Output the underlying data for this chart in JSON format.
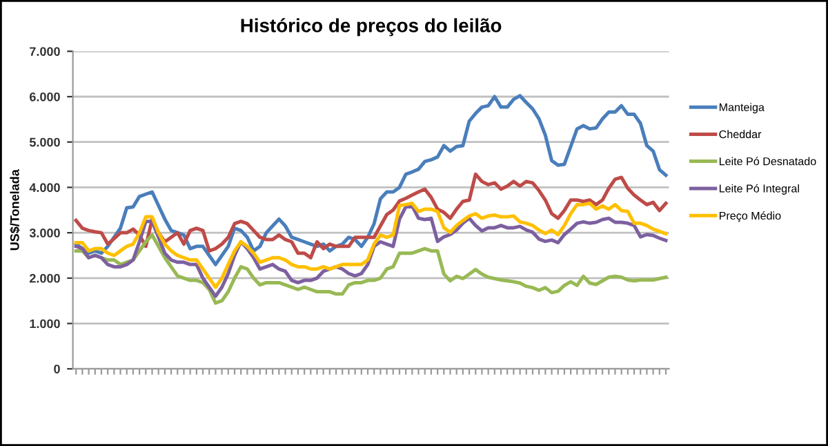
{
  "chart_data": {
    "type": "line",
    "title": "Histórico de preços do leilão",
    "ylabel": "US$/Tonelada",
    "categories": [
      null,
      null,
      null,
      null,
      null,
      null,
      null,
      null,
      null,
      null,
      null,
      null,
      null,
      null,
      null,
      null,
      null,
      null,
      null,
      null,
      null,
      null,
      null,
      null,
      null,
      null,
      null,
      null,
      null,
      null,
      null,
      null,
      null,
      null,
      null,
      null,
      null,
      null,
      null,
      null,
      null,
      null,
      null,
      null,
      null,
      null,
      null,
      null,
      null,
      null,
      null,
      null,
      null,
      null,
      null,
      null,
      null,
      null,
      null,
      null,
      null,
      null,
      null,
      null,
      null,
      null,
      null,
      null,
      null,
      null,
      null,
      null,
      null,
      null,
      null,
      null,
      null,
      null,
      null,
      null,
      null,
      null,
      null,
      null,
      null,
      null,
      null,
      null,
      null,
      null,
      null,
      null,
      null,
      null
    ],
    "series": [
      {
        "name": "Manteiga",
        "color": "#4a7ebb",
        "values": [
          2750,
          2650,
          2550,
          2600,
          2550,
          2700,
          2900,
          3100,
          3550,
          3570,
          3800,
          3850,
          3900,
          3600,
          3300,
          3050,
          3000,
          2950,
          2650,
          2700,
          2700,
          2500,
          2300,
          2500,
          2700,
          3100,
          3050,
          2900,
          2600,
          2700,
          3000,
          3150,
          3300,
          3150,
          2900,
          2850,
          2800,
          2750,
          2700,
          2750,
          2600,
          2700,
          2750,
          2900,
          2850,
          2700,
          2900,
          3200,
          3750,
          3900,
          3900,
          4000,
          4290,
          4340,
          4400,
          4570,
          4610,
          4670,
          4920,
          4800,
          4900,
          4920,
          5460,
          5630,
          5770,
          5800,
          6000,
          5770,
          5770,
          5940,
          6020,
          5870,
          5730,
          5510,
          5150,
          4590,
          4490,
          4510,
          4900,
          5290,
          5360,
          5290,
          5310,
          5510,
          5660,
          5660,
          5800,
          5610,
          5610,
          5410,
          4920,
          4800,
          4390,
          4270
        ]
      },
      {
        "name": "Cheddar",
        "color": "#be4b48",
        "values": [
          3270,
          3100,
          3050,
          3020,
          3000,
          2750,
          2870,
          3000,
          3000,
          3080,
          2950,
          2700,
          3300,
          3000,
          2800,
          2900,
          3000,
          2750,
          3050,
          3100,
          3050,
          2600,
          2650,
          2750,
          2900,
          3200,
          3250,
          3200,
          3050,
          2900,
          2850,
          2850,
          2950,
          2850,
          2800,
          2550,
          2550,
          2450,
          2800,
          2650,
          2750,
          2700,
          2700,
          2700,
          2900,
          2900,
          2900,
          2900,
          3150,
          3400,
          3500,
          3700,
          3760,
          3830,
          3900,
          3960,
          3780,
          3520,
          3450,
          3320,
          3520,
          3690,
          3720,
          4290,
          4130,
          4060,
          4100,
          3960,
          4030,
          4130,
          4030,
          4130,
          4100,
          3930,
          3720,
          3420,
          3320,
          3490,
          3720,
          3720,
          3690,
          3720,
          3620,
          3720,
          3980,
          4180,
          4220,
          3980,
          3830,
          3720,
          3620,
          3670,
          3490,
          3650
        ]
      },
      {
        "name": "Leite Pó Desnatado",
        "color": "#98b954",
        "values": [
          2600,
          2600,
          2450,
          2500,
          2450,
          2400,
          2400,
          2300,
          2350,
          2400,
          2600,
          2800,
          2950,
          2700,
          2450,
          2250,
          2050,
          2000,
          1950,
          1950,
          1900,
          1750,
          1450,
          1500,
          1700,
          2000,
          2250,
          2200,
          2000,
          1850,
          1900,
          1900,
          1900,
          1850,
          1800,
          1750,
          1800,
          1750,
          1700,
          1700,
          1700,
          1650,
          1650,
          1850,
          1900,
          1900,
          1950,
          1950,
          2000,
          2200,
          2250,
          2550,
          2550,
          2550,
          2600,
          2650,
          2600,
          2600,
          2090,
          1940,
          2040,
          1990,
          2090,
          2190,
          2090,
          2020,
          1990,
          1960,
          1940,
          1920,
          1890,
          1820,
          1790,
          1730,
          1790,
          1680,
          1710,
          1840,
          1920,
          1840,
          2040,
          1890,
          1860,
          1940,
          2020,
          2040,
          2020,
          1960,
          1940,
          1960,
          1960,
          1960,
          1990,
          2020
        ]
      },
      {
        "name": "Leite Pó Integral",
        "color": "#7d60a0",
        "values": [
          2700,
          2650,
          2450,
          2500,
          2450,
          2300,
          2250,
          2250,
          2300,
          2400,
          2800,
          3250,
          3250,
          2900,
          2550,
          2400,
          2350,
          2350,
          2300,
          2300,
          2000,
          1800,
          1600,
          1800,
          2100,
          2500,
          2800,
          2650,
          2450,
          2200,
          2250,
          2300,
          2200,
          2150,
          1950,
          1900,
          1950,
          1950,
          2000,
          2150,
          2200,
          2250,
          2200,
          2100,
          2050,
          2100,
          2300,
          2700,
          2800,
          2750,
          2700,
          3300,
          3570,
          3590,
          3320,
          3290,
          3320,
          2810,
          2910,
          2960,
          3060,
          3210,
          3320,
          3160,
          3040,
          3110,
          3110,
          3160,
          3110,
          3110,
          3140,
          3060,
          3010,
          2860,
          2810,
          2840,
          2780,
          2960,
          3080,
          3210,
          3240,
          3210,
          3230,
          3290,
          3320,
          3230,
          3230,
          3210,
          3160,
          2910,
          2960,
          2940,
          2880,
          2830
        ]
      },
      {
        "name": "Preço Médio",
        "color": "#ffc000",
        "values": [
          2780,
          2780,
          2600,
          2650,
          2650,
          2550,
          2500,
          2600,
          2700,
          2750,
          3000,
          3350,
          3350,
          3000,
          2750,
          2600,
          2500,
          2450,
          2400,
          2400,
          2200,
          2000,
          1800,
          2000,
          2300,
          2600,
          2800,
          2700,
          2550,
          2350,
          2400,
          2450,
          2450,
          2400,
          2300,
          2250,
          2250,
          2200,
          2200,
          2250,
          2200,
          2250,
          2300,
          2300,
          2300,
          2300,
          2400,
          2750,
          2950,
          2900,
          2950,
          3600,
          3620,
          3650,
          3470,
          3520,
          3520,
          3470,
          3110,
          3010,
          3160,
          3270,
          3370,
          3420,
          3320,
          3370,
          3390,
          3350,
          3350,
          3370,
          3240,
          3210,
          3160,
          3060,
          2980,
          3060,
          2960,
          3160,
          3420,
          3620,
          3620,
          3650,
          3520,
          3590,
          3520,
          3620,
          3490,
          3470,
          3210,
          3210,
          3160,
          3080,
          3030,
          2980
        ]
      }
    ],
    "ylim": [
      0,
      7000
    ],
    "yticks": [
      {
        "value": 0,
        "label": "0"
      },
      {
        "value": 1000,
        "label": "1.000"
      },
      {
        "value": 2000,
        "label": "2.000"
      },
      {
        "value": 3000,
        "label": "3.000"
      },
      {
        "value": 4000,
        "label": "4.000"
      },
      {
        "value": 5000,
        "label": "5.000"
      },
      {
        "value": 6000,
        "label": "6.000"
      },
      {
        "value": 7000,
        "label": "7.000"
      }
    ],
    "grid": "y",
    "legend": "right",
    "marker": "none",
    "line_style": "solid",
    "tick_labels": "y"
  }
}
